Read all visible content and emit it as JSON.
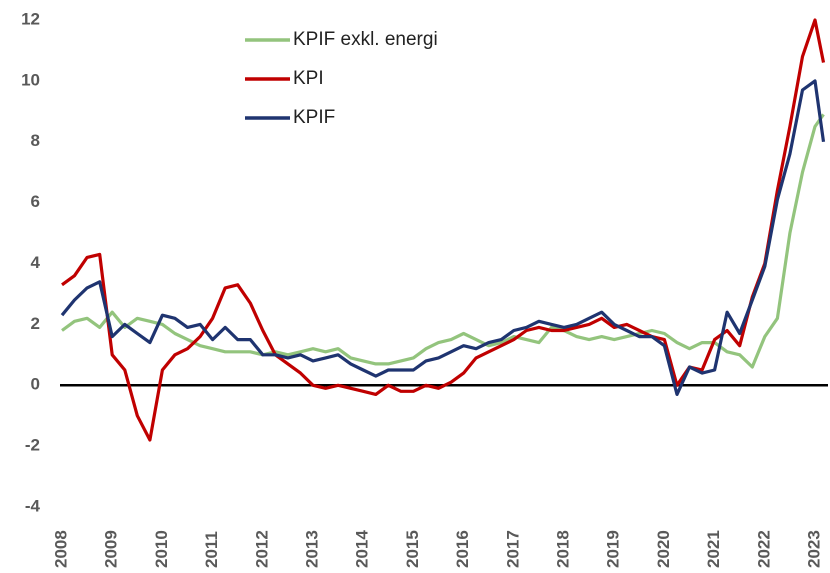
{
  "chart_data": {
    "type": "line",
    "x": [
      2008,
      2008.25,
      2008.5,
      2008.75,
      2009,
      2009.25,
      2009.5,
      2009.75,
      2010,
      2010.25,
      2010.5,
      2010.75,
      2011,
      2011.25,
      2011.5,
      2011.75,
      2012,
      2012.25,
      2012.5,
      2012.75,
      2013,
      2013.25,
      2013.5,
      2013.75,
      2014,
      2014.25,
      2014.5,
      2014.75,
      2015,
      2015.25,
      2015.5,
      2015.75,
      2016,
      2016.25,
      2016.5,
      2016.75,
      2017,
      2017.25,
      2017.5,
      2017.75,
      2018,
      2018.25,
      2018.5,
      2018.75,
      2019,
      2019.25,
      2019.5,
      2019.75,
      2020,
      2020.25,
      2020.5,
      2020.75,
      2021,
      2021.25,
      2021.5,
      2021.75,
      2022,
      2022.25,
      2022.5,
      2022.75,
      2023,
      2023.17
    ],
    "series": [
      {
        "name": "KPIF exkl. energi",
        "color": "#93c47d",
        "values": [
          1.8,
          2.1,
          2.2,
          1.9,
          2.4,
          1.9,
          2.2,
          2.1,
          2.0,
          1.7,
          1.5,
          1.3,
          1.2,
          1.1,
          1.1,
          1.1,
          1.0,
          1.1,
          1.0,
          1.1,
          1.2,
          1.1,
          1.2,
          0.9,
          0.8,
          0.7,
          0.7,
          0.8,
          0.9,
          1.2,
          1.4,
          1.5,
          1.7,
          1.5,
          1.3,
          1.4,
          1.6,
          1.5,
          1.4,
          1.9,
          1.8,
          1.6,
          1.5,
          1.6,
          1.5,
          1.6,
          1.7,
          1.8,
          1.7,
          1.4,
          1.2,
          1.4,
          1.4,
          1.1,
          1.0,
          0.6,
          1.6,
          2.2,
          5.0,
          7.0,
          8.5,
          8.9
        ]
      },
      {
        "name": "KPI",
        "color": "#c00000",
        "values": [
          3.3,
          3.6,
          4.2,
          4.3,
          1.0,
          0.5,
          -1.0,
          -1.8,
          0.5,
          1.0,
          1.2,
          1.6,
          2.2,
          3.2,
          3.3,
          2.7,
          1.8,
          1.0,
          0.7,
          0.4,
          0.0,
          -0.1,
          0.0,
          -0.1,
          -0.2,
          -0.3,
          0.0,
          -0.2,
          -0.2,
          0.0,
          -0.1,
          0.1,
          0.4,
          0.9,
          1.1,
          1.3,
          1.5,
          1.8,
          1.9,
          1.8,
          1.8,
          1.9,
          2.0,
          2.2,
          1.9,
          2.0,
          1.8,
          1.6,
          1.5,
          0.0,
          0.6,
          0.5,
          1.5,
          1.8,
          1.3,
          2.9,
          4.0,
          6.4,
          8.5,
          10.8,
          12.0,
          10.6
        ]
      },
      {
        "name": "KPIF",
        "color": "#1f3470",
        "values": [
          2.3,
          2.8,
          3.2,
          3.4,
          1.6,
          2.0,
          1.7,
          1.4,
          2.3,
          2.2,
          1.9,
          2.0,
          1.5,
          1.9,
          1.5,
          1.5,
          1.0,
          1.0,
          0.9,
          1.0,
          0.8,
          0.9,
          1.0,
          0.7,
          0.5,
          0.3,
          0.5,
          0.5,
          0.5,
          0.8,
          0.9,
          1.1,
          1.3,
          1.2,
          1.4,
          1.5,
          1.8,
          1.9,
          2.1,
          2.0,
          1.9,
          2.0,
          2.2,
          2.4,
          2.0,
          1.8,
          1.6,
          1.6,
          1.3,
          -0.3,
          0.6,
          0.4,
          0.5,
          2.4,
          1.7,
          2.8,
          3.9,
          6.1,
          7.6,
          9.7,
          10.0,
          8.0
        ]
      }
    ],
    "xlim": [
      2008,
      2023.2
    ],
    "xticks": [
      2008,
      2009,
      2010,
      2011,
      2012,
      2013,
      2014,
      2015,
      2016,
      2017,
      2018,
      2019,
      2020,
      2021,
      2022,
      2023
    ],
    "ylim": [
      -4,
      12
    ],
    "yticks": [
      -4,
      -2,
      0,
      2,
      4,
      6,
      8,
      10,
      12
    ],
    "grid": false,
    "legend": "top"
  }
}
